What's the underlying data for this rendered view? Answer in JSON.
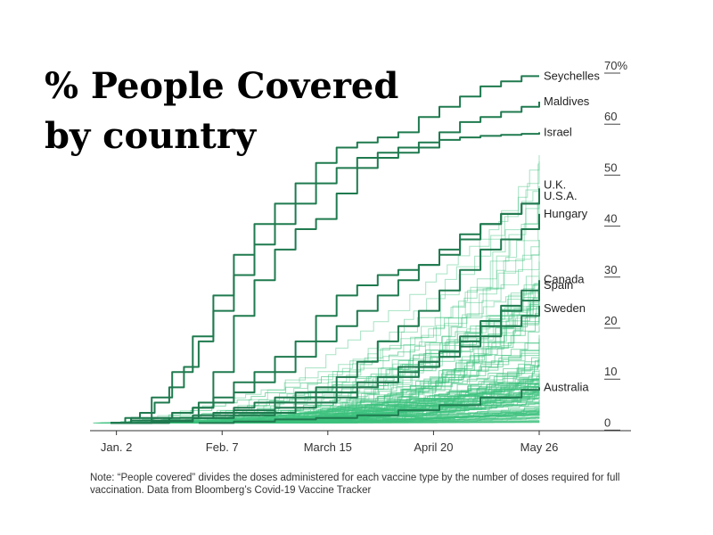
{
  "chart_data": {
    "type": "line",
    "title_lines": [
      "% People Covered",
      "by country"
    ],
    "x_ticks": [
      {
        "label": "Jan. 2",
        "day": 2
      },
      {
        "label": "Feb. 7",
        "day": 38
      },
      {
        "label": "March 15",
        "day": 74
      },
      {
        "label": "April 20",
        "day": 110
      },
      {
        "label": "May 26",
        "day": 146
      }
    ],
    "x_range": [
      -7,
      146
    ],
    "y_ticks": [
      {
        "label": "70%",
        "value": 70
      },
      {
        "label": "60",
        "value": 60
      },
      {
        "label": "50",
        "value": 50
      },
      {
        "label": "40",
        "value": 40
      },
      {
        "label": "30",
        "value": 30
      },
      {
        "label": "20",
        "value": 20
      },
      {
        "label": "10",
        "value": 10
      },
      {
        "label": "0",
        "value": 0
      }
    ],
    "y_range": [
      -1.5,
      70
    ],
    "colors": {
      "highlight": "#1f7a4f",
      "background": "#3cc27d"
    },
    "series": [
      {
        "name": "Seychelles",
        "points": [
          [
            0,
            0
          ],
          [
            7,
            1
          ],
          [
            14,
            5
          ],
          [
            21,
            10
          ],
          [
            28,
            17
          ],
          [
            35,
            25
          ],
          [
            42,
            33
          ],
          [
            49,
            39
          ],
          [
            56,
            43
          ],
          [
            63,
            47
          ],
          [
            70,
            51
          ],
          [
            77,
            54
          ],
          [
            84,
            55
          ],
          [
            91,
            56
          ],
          [
            98,
            57
          ],
          [
            105,
            60
          ],
          [
            112,
            62
          ],
          [
            119,
            64
          ],
          [
            126,
            66
          ],
          [
            133,
            67
          ],
          [
            140,
            68
          ],
          [
            146,
            68
          ]
        ]
      },
      {
        "name": "Maldives",
        "points": [
          [
            0,
            0
          ],
          [
            10,
            0
          ],
          [
            20,
            1
          ],
          [
            30,
            4
          ],
          [
            35,
            10
          ],
          [
            42,
            21
          ],
          [
            49,
            28
          ],
          [
            56,
            34
          ],
          [
            63,
            38
          ],
          [
            70,
            40
          ],
          [
            77,
            45
          ],
          [
            84,
            50
          ],
          [
            91,
            52
          ],
          [
            98,
            53
          ],
          [
            105,
            54
          ],
          [
            112,
            57
          ],
          [
            119,
            59
          ],
          [
            126,
            60
          ],
          [
            133,
            61
          ],
          [
            140,
            62
          ],
          [
            146,
            63
          ]
        ]
      },
      {
        "name": "Israel",
        "points": [
          [
            0,
            0
          ],
          [
            5,
            1
          ],
          [
            10,
            2
          ],
          [
            15,
            4
          ],
          [
            20,
            7
          ],
          [
            25,
            11
          ],
          [
            30,
            16
          ],
          [
            35,
            22
          ],
          [
            42,
            29
          ],
          [
            49,
            35
          ],
          [
            56,
            39
          ],
          [
            63,
            43
          ],
          [
            70,
            47
          ],
          [
            77,
            50
          ],
          [
            84,
            52
          ],
          [
            91,
            53
          ],
          [
            98,
            54
          ],
          [
            105,
            55
          ],
          [
            112,
            55.5
          ],
          [
            119,
            56
          ],
          [
            126,
            56.3
          ],
          [
            133,
            56.5
          ],
          [
            140,
            56.7
          ],
          [
            146,
            57
          ]
        ]
      },
      {
        "name": "U.K.",
        "points": [
          [
            0,
            0
          ],
          [
            7,
            0.5
          ],
          [
            14,
            1
          ],
          [
            21,
            2
          ],
          [
            28,
            3
          ],
          [
            35,
            5
          ],
          [
            42,
            8
          ],
          [
            49,
            10
          ],
          [
            56,
            13
          ],
          [
            63,
            16
          ],
          [
            70,
            21
          ],
          [
            77,
            25
          ],
          [
            84,
            27
          ],
          [
            91,
            29
          ],
          [
            98,
            30
          ],
          [
            105,
            31
          ],
          [
            112,
            33
          ],
          [
            119,
            36
          ],
          [
            126,
            39
          ],
          [
            133,
            41
          ],
          [
            140,
            43
          ],
          [
            146,
            46
          ]
        ]
      },
      {
        "name": "U.S.A.",
        "points": [
          [
            0,
            0
          ],
          [
            7,
            0.5
          ],
          [
            14,
            1
          ],
          [
            21,
            2
          ],
          [
            28,
            3
          ],
          [
            35,
            4
          ],
          [
            42,
            6
          ],
          [
            49,
            8
          ],
          [
            56,
            10
          ],
          [
            63,
            13
          ],
          [
            70,
            16
          ],
          [
            77,
            19
          ],
          [
            84,
            22
          ],
          [
            91,
            25
          ],
          [
            98,
            28
          ],
          [
            105,
            31
          ],
          [
            112,
            34
          ],
          [
            119,
            37
          ],
          [
            126,
            39
          ],
          [
            133,
            41
          ],
          [
            140,
            43
          ],
          [
            146,
            45
          ]
        ]
      },
      {
        "name": "Hungary",
        "points": [
          [
            0,
            0
          ],
          [
            14,
            0.5
          ],
          [
            28,
            1
          ],
          [
            35,
            2
          ],
          [
            42,
            3
          ],
          [
            49,
            4
          ],
          [
            56,
            5
          ],
          [
            63,
            6
          ],
          [
            70,
            7
          ],
          [
            77,
            9
          ],
          [
            84,
            12
          ],
          [
            91,
            16
          ],
          [
            98,
            19
          ],
          [
            105,
            22
          ],
          [
            112,
            26
          ],
          [
            119,
            30
          ],
          [
            126,
            34
          ],
          [
            133,
            36
          ],
          [
            140,
            38
          ],
          [
            146,
            41
          ]
        ]
      },
      {
        "name": "Canada",
        "points": [
          [
            0,
            0
          ],
          [
            14,
            0.3
          ],
          [
            28,
            1
          ],
          [
            42,
            1.5
          ],
          [
            56,
            2
          ],
          [
            63,
            3
          ],
          [
            70,
            4
          ],
          [
            77,
            5
          ],
          [
            84,
            7
          ],
          [
            91,
            8
          ],
          [
            98,
            10
          ],
          [
            105,
            12
          ],
          [
            112,
            14
          ],
          [
            119,
            17
          ],
          [
            126,
            20
          ],
          [
            133,
            23
          ],
          [
            140,
            26
          ],
          [
            146,
            28
          ]
        ]
      },
      {
        "name": "Spain",
        "points": [
          [
            0,
            0
          ],
          [
            14,
            0.5
          ],
          [
            28,
            1.5
          ],
          [
            42,
            2.5
          ],
          [
            56,
            4
          ],
          [
            63,
            5
          ],
          [
            70,
            6
          ],
          [
            77,
            7
          ],
          [
            84,
            8
          ],
          [
            91,
            9
          ],
          [
            98,
            11
          ],
          [
            105,
            12
          ],
          [
            112,
            14
          ],
          [
            119,
            16
          ],
          [
            126,
            19
          ],
          [
            133,
            22
          ],
          [
            140,
            24
          ],
          [
            146,
            27
          ]
        ]
      },
      {
        "name": "Sweden",
        "points": [
          [
            0,
            0
          ],
          [
            14,
            0.5
          ],
          [
            28,
            1
          ],
          [
            42,
            2
          ],
          [
            56,
            3
          ],
          [
            63,
            4
          ],
          [
            70,
            5
          ],
          [
            77,
            6
          ],
          [
            84,
            7
          ],
          [
            91,
            8
          ],
          [
            98,
            9
          ],
          [
            105,
            11
          ],
          [
            112,
            13
          ],
          [
            119,
            15
          ],
          [
            126,
            17
          ],
          [
            133,
            19
          ],
          [
            140,
            21
          ],
          [
            146,
            23
          ]
        ]
      },
      {
        "name": "Australia",
        "points": [
          [
            30,
            0
          ],
          [
            42,
            0.3
          ],
          [
            56,
            0.7
          ],
          [
            70,
            1
          ],
          [
            84,
            1.5
          ],
          [
            98,
            2.5
          ],
          [
            112,
            3.5
          ],
          [
            126,
            5
          ],
          [
            140,
            6.5
          ],
          [
            146,
            7
          ]
        ]
      }
    ]
  },
  "note": "Note: “People covered” divides the doses administered for each vaccine type by the number of doses required for full vaccination. Data from Bloomberg’s Covid-19 Vaccine Tracker"
}
